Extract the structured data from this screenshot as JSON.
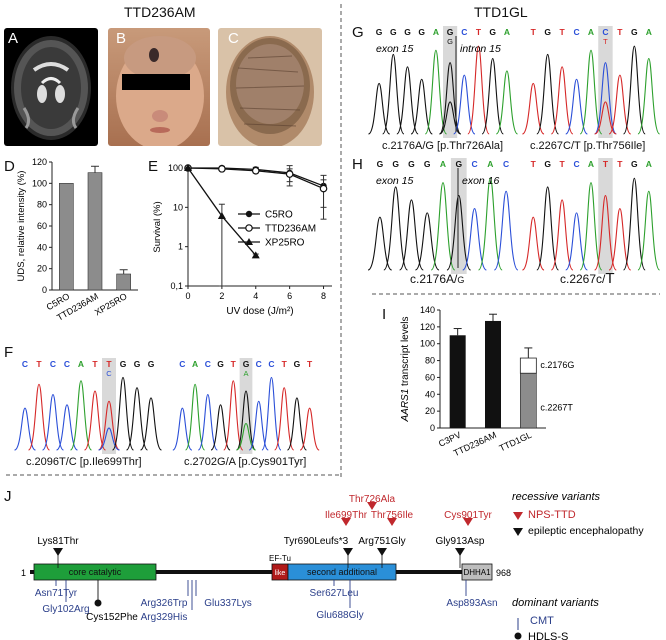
{
  "headers": {
    "left": "TTD236AM",
    "right": "TTD1GL"
  },
  "panels": {
    "A": "A",
    "B": "B",
    "C": "C",
    "D": "D",
    "E": "E",
    "F": "F",
    "G": "G",
    "H": "H",
    "I": "I",
    "J": "J"
  },
  "panel_F": {
    "seq1": [
      "C",
      "T",
      "C",
      "C",
      "A",
      "T",
      "T",
      "G",
      "G",
      "G"
    ],
    "seq1_alt": "C",
    "caption1": "c.2096T/C [p.Ile699Thr]",
    "seq2": [
      "C",
      "A",
      "C",
      "G",
      "T",
      "G",
      "C",
      "C",
      "T",
      "G",
      "T"
    ],
    "seq2_alt": "A",
    "caption2": "c.2702G/A [p.Cys901Tyr]"
  },
  "panel_G": {
    "seq1": [
      "G",
      "G",
      "G",
      "G",
      "A",
      "G",
      "C",
      "T",
      "G",
      "A"
    ],
    "seq1_alt": "G",
    "label_left": "exon 15",
    "label_right": "intron 15",
    "caption1": "c.2176A/G [p.Thr726Ala]",
    "seq2": [
      "T",
      "G",
      "T",
      "C",
      "A",
      "C",
      "T",
      "G",
      "A"
    ],
    "seq2_alt": "T",
    "caption2": "c.2267C/T [p.Thr756Ile]"
  },
  "panel_H": {
    "seq1": [
      "G",
      "G",
      "G",
      "G",
      "A",
      "G",
      "C",
      "A",
      "C"
    ],
    "label_left": "exon 15",
    "label_right": "exon 16",
    "caption1_main": "c.2176A/",
    "caption1_small": "G",
    "seq2": [
      "T",
      "G",
      "T",
      "C",
      "A",
      "T",
      "T",
      "G",
      "A"
    ],
    "caption2_main": "c.2267c/",
    "caption2_big": "T"
  },
  "chart_data": [
    {
      "id": "D",
      "type": "bar",
      "categories": [
        "C5RO",
        "TTD236AM",
        "XP25RO"
      ],
      "values": [
        100,
        110,
        15
      ],
      "errors": [
        0,
        6,
        4
      ],
      "ylabel": "UDS, relative intensity (%)",
      "ylim": [
        0,
        120
      ],
      "yticks": [
        "0",
        "20",
        "40",
        "60",
        "80",
        "100",
        "120"
      ]
    },
    {
      "id": "E",
      "type": "line",
      "xlabel": "UV dose (J/m²)",
      "ylabel": "Survival (%)",
      "xticks": [
        "0",
        "2",
        "4",
        "6",
        "8"
      ],
      "yticks": [
        "0,1",
        "1",
        "10",
        "100"
      ],
      "yscale": "log",
      "xlim": [
        0,
        8.5
      ],
      "ylim": [
        0.1,
        100
      ],
      "series": [
        {
          "name": "C5RO",
          "x": [
            0,
            2,
            4,
            6,
            8
          ],
          "y": [
            100,
            100,
            92,
            75,
            35
          ],
          "err": [
            5,
            10,
            12,
            40,
            30
          ]
        },
        {
          "name": "TTD236AM",
          "x": [
            0,
            2,
            4,
            6,
            8
          ],
          "y": [
            100,
            95,
            85,
            70,
            30
          ],
          "err": [
            5,
            8,
            10,
            25,
            20
          ]
        },
        {
          "name": "XP25RO",
          "x": [
            0,
            2,
            4
          ],
          "y": [
            100,
            6,
            0.6
          ],
          "err": [
            5,
            6,
            0.05
          ]
        }
      ]
    },
    {
      "id": "I",
      "type": "bar",
      "categories": [
        "C3PV",
        "TTD236AM",
        "TTD1GL"
      ],
      "values": [
        110,
        127,
        83
      ],
      "errors": [
        8,
        8,
        12
      ],
      "stack_TTD1GL": {
        "c.2267T": 65,
        "c.2176G": 18
      },
      "stack_labels": [
        "c.2176G",
        "c.2267T"
      ],
      "ylabel_italic": "AARS1",
      "ylabel_rest": " transcript  levels",
      "ylim": [
        0,
        140
      ],
      "yticks": [
        "0",
        "20",
        "40",
        "60",
        "80",
        "100",
        "120",
        "140"
      ]
    }
  ],
  "panel_J": {
    "start": "1",
    "end": "968",
    "domains": [
      "core catalytic",
      "EF-Tu",
      "like",
      "second additional",
      "DHHA1"
    ],
    "recessive_top": [
      "Thr726Ala",
      "Ile699Thr",
      "Thr756Ile",
      "Cys901Tyr"
    ],
    "epileptic_top": [
      "Lys81Thr",
      "Tyr690Leufs*3",
      "Arg751Gly",
      "Gly913Asp"
    ],
    "dominant_bottom": [
      "Asn71Tyr",
      "Gly102Arg",
      "Arg326Trp",
      "Arg329His",
      "Glu337Lys",
      "Ser627Leu",
      "Glu688Gly",
      "Asp893Asn"
    ],
    "hdls_bottom": [
      "Cys152Phe"
    ],
    "legend": {
      "recessive_title": "recessive variants",
      "nps": "NPS-TTD",
      "epileptic": "epileptic encephalopathy",
      "dominant_title": "dominant variants",
      "cmt": "CMT",
      "hdls": "HDLS-S"
    },
    "colors": {
      "red": "#c0282d",
      "green": "#1e9e3a",
      "blue": "#2a8fd8",
      "darkred": "#b01a1a",
      "navy": "#2b3f8a",
      "gray": "#bdbdbd"
    }
  }
}
